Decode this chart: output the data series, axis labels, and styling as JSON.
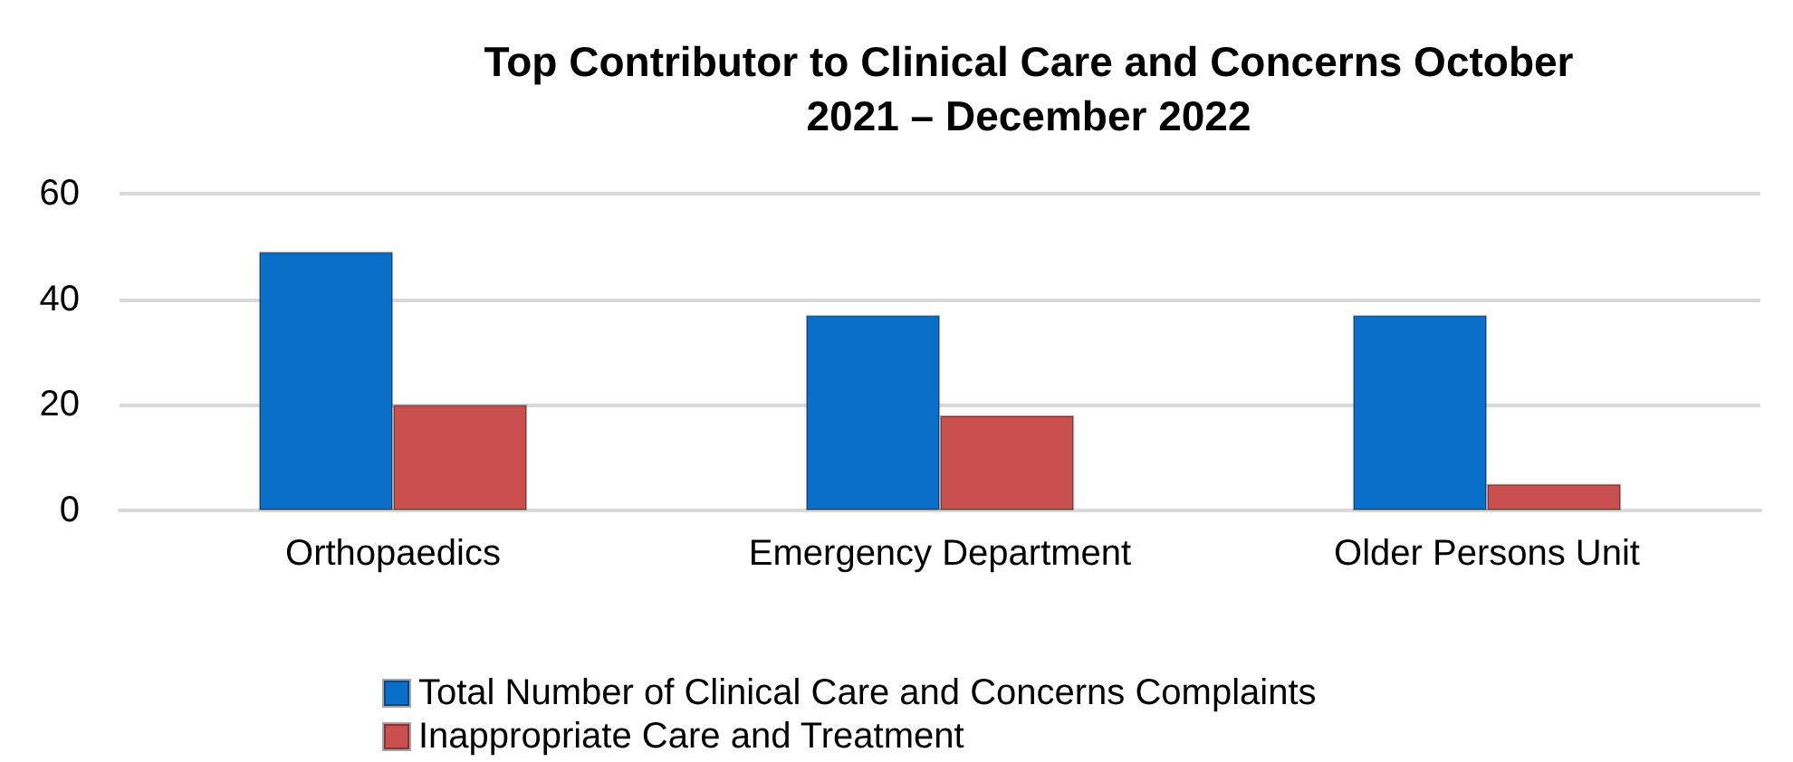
{
  "chart_data": {
    "type": "bar",
    "title": "Top Contributor to Clinical Care and Concerns October\n2021 – December 2022",
    "categories": [
      "Orthopaedics",
      "Emergency Department",
      "Older Persons Unit"
    ],
    "series": [
      {
        "name": "Total Number of Clinical Care and Concerns Complaints",
        "color": "#0a6fc9",
        "values": [
          49,
          37,
          37
        ]
      },
      {
        "name": "Inappropriate Care and Treatment",
        "color": "#c9504f",
        "values": [
          20,
          18,
          5
        ]
      }
    ],
    "ylim": [
      0,
      60
    ],
    "yticks": [
      0,
      20,
      40,
      60
    ],
    "grid": "y",
    "legend": "bottom"
  }
}
